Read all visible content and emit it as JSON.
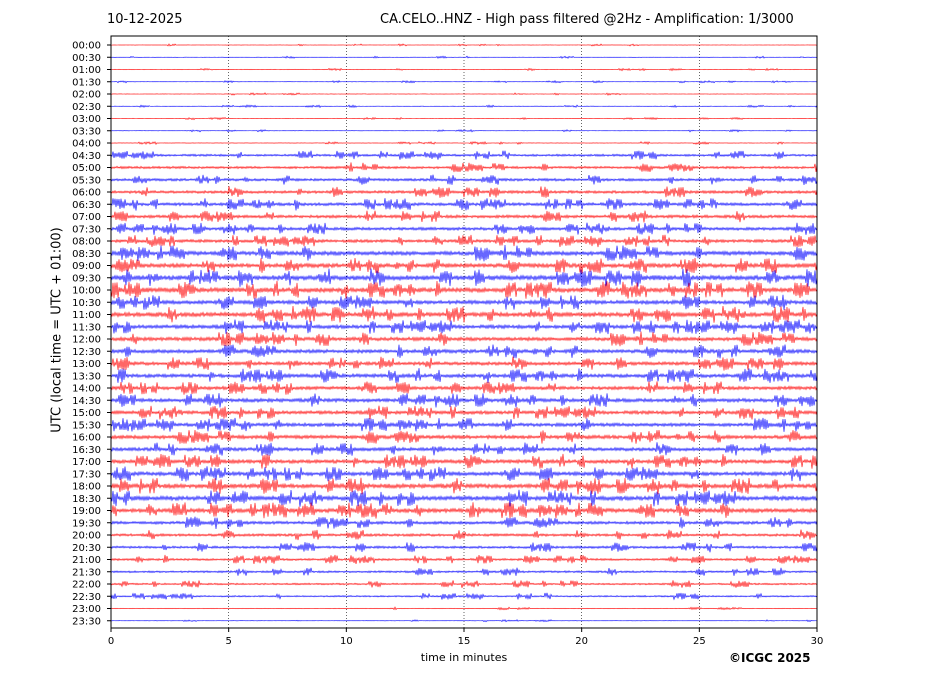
{
  "header": {
    "date": "10-12-2025",
    "station_title": "CA.CELO..HNZ - High pass filtered @2Hz - Amplification: 1/3000"
  },
  "footer": {
    "copyright": "©ICGC 2025"
  },
  "colors": {
    "trace_a": "#ff0000",
    "trace_b": "#0000ff",
    "grid": "#000000"
  },
  "chart_data": {
    "type": "line",
    "title": "CA.CELO..HNZ - High pass filtered @2Hz - Amplification: 1/3000",
    "xlabel": "time in minutes",
    "ylabel": "UTC (local time = UTC + 01:00)",
    "xlim": [
      0,
      30
    ],
    "x_ticks": [
      "0",
      "5",
      "10",
      "15",
      "20",
      "25",
      "30"
    ],
    "grid": "vertical dotted at 5-minute intervals",
    "rows": [
      {
        "label": "00:00",
        "color": "#ff0000",
        "activity": 0.05
      },
      {
        "label": "00:30",
        "color": "#0000ff",
        "activity": 0.05
      },
      {
        "label": "01:00",
        "color": "#ff0000",
        "activity": 0.08
      },
      {
        "label": "01:30",
        "color": "#0000ff",
        "activity": 0.06
      },
      {
        "label": "02:00",
        "color": "#ff0000",
        "activity": 0.08
      },
      {
        "label": "02:30",
        "color": "#0000ff",
        "activity": 0.08
      },
      {
        "label": "03:00",
        "color": "#ff0000",
        "activity": 0.06
      },
      {
        "label": "03:30",
        "color": "#0000ff",
        "activity": 0.06
      },
      {
        "label": "04:00",
        "color": "#ff0000",
        "activity": 0.12
      },
      {
        "label": "04:30",
        "color": "#0000ff",
        "activity": 0.35
      },
      {
        "label": "05:00",
        "color": "#ff0000",
        "activity": 0.4
      },
      {
        "label": "05:30",
        "color": "#0000ff",
        "activity": 0.45
      },
      {
        "label": "06:00",
        "color": "#ff0000",
        "activity": 0.5
      },
      {
        "label": "06:30",
        "color": "#0000ff",
        "activity": 0.55
      },
      {
        "label": "07:00",
        "color": "#ff0000",
        "activity": 0.55
      },
      {
        "label": "07:30",
        "color": "#0000ff",
        "activity": 0.55
      },
      {
        "label": "08:00",
        "color": "#ff0000",
        "activity": 0.55
      },
      {
        "label": "08:30",
        "color": "#0000ff",
        "activity": 0.8
      },
      {
        "label": "09:00",
        "color": "#ff0000",
        "activity": 0.8
      },
      {
        "label": "09:30",
        "color": "#0000ff",
        "activity": 0.95
      },
      {
        "label": "10:00",
        "color": "#ff0000",
        "activity": 0.9
      },
      {
        "label": "10:30",
        "color": "#0000ff",
        "activity": 0.75
      },
      {
        "label": "11:00",
        "color": "#ff0000",
        "activity": 0.85
      },
      {
        "label": "11:30",
        "color": "#0000ff",
        "activity": 0.7
      },
      {
        "label": "12:00",
        "color": "#ff0000",
        "activity": 0.7
      },
      {
        "label": "12:30",
        "color": "#0000ff",
        "activity": 0.7
      },
      {
        "label": "13:00",
        "color": "#ff0000",
        "activity": 0.65
      },
      {
        "label": "13:30",
        "color": "#0000ff",
        "activity": 0.7
      },
      {
        "label": "14:00",
        "color": "#ff0000",
        "activity": 0.65
      },
      {
        "label": "14:30",
        "color": "#0000ff",
        "activity": 0.7
      },
      {
        "label": "15:00",
        "color": "#ff0000",
        "activity": 0.65
      },
      {
        "label": "15:30",
        "color": "#0000ff",
        "activity": 0.65
      },
      {
        "label": "16:00",
        "color": "#ff0000",
        "activity": 0.7
      },
      {
        "label": "16:30",
        "color": "#0000ff",
        "activity": 0.65
      },
      {
        "label": "17:00",
        "color": "#ff0000",
        "activity": 0.7
      },
      {
        "label": "17:30",
        "color": "#0000ff",
        "activity": 0.75
      },
      {
        "label": "18:00",
        "color": "#ff0000",
        "activity": 0.85
      },
      {
        "label": "18:30",
        "color": "#0000ff",
        "activity": 0.85
      },
      {
        "label": "19:00",
        "color": "#ff0000",
        "activity": 0.8
      },
      {
        "label": "19:30",
        "color": "#0000ff",
        "activity": 0.55
      },
      {
        "label": "20:00",
        "color": "#ff0000",
        "activity": 0.45
      },
      {
        "label": "20:30",
        "color": "#0000ff",
        "activity": 0.4
      },
      {
        "label": "21:00",
        "color": "#ff0000",
        "activity": 0.35
      },
      {
        "label": "21:30",
        "color": "#0000ff",
        "activity": 0.3
      },
      {
        "label": "22:00",
        "color": "#ff0000",
        "activity": 0.25
      },
      {
        "label": "22:30",
        "color": "#0000ff",
        "activity": 0.2
      },
      {
        "label": "23:00",
        "color": "#ff0000",
        "activity": 0.12
      },
      {
        "label": "23:30",
        "color": "#0000ff",
        "activity": 0.05
      }
    ]
  }
}
